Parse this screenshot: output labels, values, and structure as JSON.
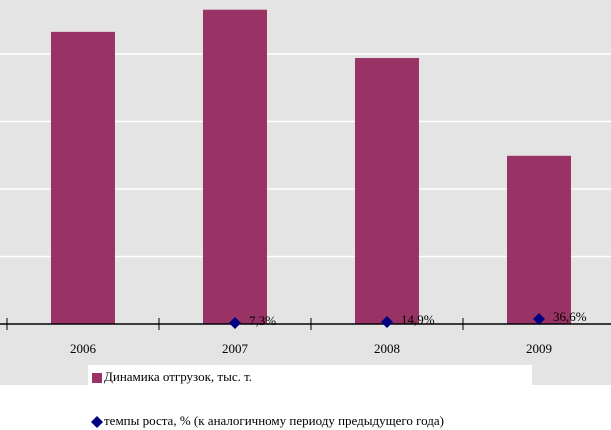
{
  "chart_data": {
    "type": "bar",
    "categories": [
      "2006",
      "2007",
      "2008",
      "2009"
    ],
    "series": [
      {
        "name": "Динамика отгрузок, тыс. т.",
        "type": "bar",
        "color": "#993366",
        "values": [
          2164,
          2328,
          1970,
          1246
        ]
      },
      {
        "name": "темпы роста, % (к аналогичному периоду предыдущего года)",
        "type": "scatter",
        "color": "#000080",
        "values": [
          null,
          7.3,
          14.9,
          36.6
        ],
        "value_labels": [
          null,
          "7,3%",
          "14,9%",
          "36,6%"
        ]
      }
    ],
    "ylim": [
      0,
      2400
    ],
    "yticks": [
      0,
      500,
      1000,
      1500,
      2000
    ],
    "grid": true
  }
}
